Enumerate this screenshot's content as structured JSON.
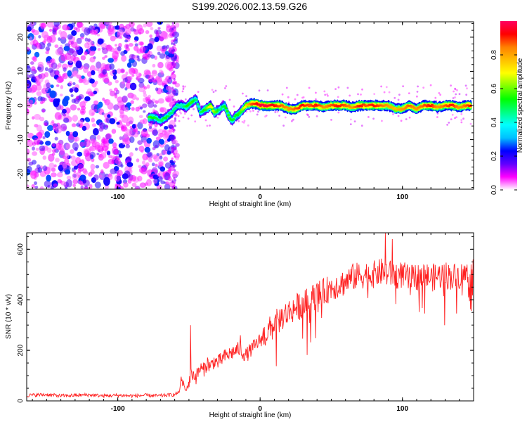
{
  "title": "S199.2026.002.13.59.G26",
  "chart_data": [
    {
      "type": "heatmap",
      "xlabel": "Height of straight line (km)",
      "ylabel": "Frequency (Hz)",
      "xlim": [
        -164,
        150
      ],
      "ylim": [
        -24.5,
        24.5
      ],
      "xticks": [
        -100,
        0,
        100
      ],
      "xtick_labels": [
        "-100",
        "0",
        "100"
      ],
      "yticks": [
        -20,
        -10,
        0,
        10,
        20
      ],
      "ytick_labels": [
        "-20",
        "-10",
        "0",
        "10",
        "20"
      ],
      "colorbar": {
        "label": "Normalized spectral amplitude",
        "range": [
          0,
          1
        ],
        "ticks": [
          0,
          0.2,
          0.4,
          0.6,
          0.8
        ],
        "tick_labels": [
          "0.0",
          "0.2",
          "0.4",
          "0.6",
          "0.8"
        ],
        "colors": [
          "#ffffff",
          "#ff00ff",
          "#6000ff",
          "#0000ff",
          "#00c0ff",
          "#00ffff",
          "#00ff80",
          "#00ff00",
          "#80ff00",
          "#ffff00",
          "#ffc000",
          "#ff8000",
          "#ff0000",
          "#ff0060"
        ]
      },
      "noise_region_x": [
        -164,
        -60
      ],
      "signal_ridge": {
        "x": [
          -78,
          -74,
          -70,
          -66,
          -62,
          -58,
          -55,
          -52,
          -48,
          -45,
          -42,
          -38,
          -35,
          -32,
          -28,
          -25,
          -22,
          -20,
          -17,
          -14,
          -10,
          -6,
          -2,
          0,
          5,
          10,
          15,
          20,
          25,
          30,
          35,
          40,
          45,
          50,
          55,
          60,
          65,
          70,
          75,
          80,
          85,
          90,
          95,
          100,
          105,
          110,
          115,
          120,
          125,
          130,
          135,
          140,
          145,
          148
        ],
        "frequency": [
          -3.5,
          -3.5,
          -4.5,
          -3.5,
          -2,
          0,
          0,
          -0.5,
          1,
          2,
          -2,
          -1,
          0,
          -2,
          -1,
          0,
          -3,
          -4.5,
          -3,
          -2,
          0,
          0.5,
          0.5,
          0,
          0,
          0,
          0,
          -1,
          -1,
          0,
          0,
          0,
          -0.5,
          0,
          0,
          0,
          -0.5,
          0,
          0,
          0,
          0,
          0,
          -1,
          -1,
          0,
          -1,
          0,
          0,
          -0.5,
          0,
          0,
          -0.5,
          0,
          0
        ],
        "amplitude": [
          0.55,
          0.5,
          0.45,
          0.5,
          0.45,
          0.45,
          0.4,
          0.5,
          0.55,
          0.45,
          0.45,
          0.55,
          0.7,
          0.6,
          0.45,
          0.5,
          0.55,
          0.5,
          0.5,
          0.55,
          0.7,
          0.85,
          0.9,
          0.95,
          0.95,
          0.9,
          0.85,
          0.8,
          0.85,
          0.9,
          0.85,
          0.9,
          0.8,
          0.85,
          0.9,
          0.85,
          0.8,
          0.9,
          0.85,
          0.9,
          0.85,
          0.8,
          0.75,
          0.8,
          0.85,
          0.8,
          0.85,
          0.9,
          0.8,
          0.85,
          0.9,
          0.8,
          0.85,
          0.9
        ]
      }
    },
    {
      "type": "line",
      "xlabel": "Height of straight line (km)",
      "ylabel": "SNR (10 * v/v)",
      "xlim": [
        -164,
        150
      ],
      "ylim": [
        0,
        665
      ],
      "xticks": [
        -100,
        0,
        100
      ],
      "xtick_labels": [
        "-100",
        "0",
        "100"
      ],
      "yticks": [
        0,
        200,
        400,
        600
      ],
      "ytick_labels": [
        "0",
        "200",
        "400",
        "600"
      ],
      "line_color": "#ff2020",
      "series": [
        {
          "name": "SNR",
          "x": [
            -164,
            -150,
            -140,
            -130,
            -120,
            -110,
            -100,
            -90,
            -80,
            -70,
            -65,
            -60,
            -57,
            -55,
            -52,
            -50,
            -48,
            -45,
            -42,
            -40,
            -37,
            -35,
            -32,
            -30,
            -25,
            -20,
            -15,
            -10,
            -5,
            0,
            5,
            10,
            15,
            20,
            25,
            30,
            35,
            40,
            45,
            50,
            55,
            60,
            65,
            70,
            75,
            80,
            85,
            90,
            95,
            100,
            105,
            110,
            115,
            120,
            125,
            130,
            135,
            140,
            145,
            150
          ],
          "values": [
            22,
            25,
            20,
            22,
            24,
            20,
            22,
            20,
            22,
            20,
            23,
            25,
            35,
            80,
            40,
            75,
            110,
            95,
            130,
            120,
            150,
            135,
            160,
            150,
            175,
            190,
            205,
            180,
            210,
            240,
            270,
            300,
            330,
            350,
            370,
            380,
            400,
            420,
            430,
            450,
            460,
            470,
            490,
            495,
            500,
            500,
            510,
            505,
            495,
            500,
            480,
            490,
            500,
            485,
            495,
            500,
            490,
            495,
            500,
            505
          ]
        }
      ],
      "spikes": [
        {
          "x": -49,
          "value": 300
        },
        {
          "x": -14,
          "value": 260
        },
        {
          "x": 88,
          "value": 665
        },
        {
          "x": 93,
          "value": 640
        }
      ]
    }
  ]
}
